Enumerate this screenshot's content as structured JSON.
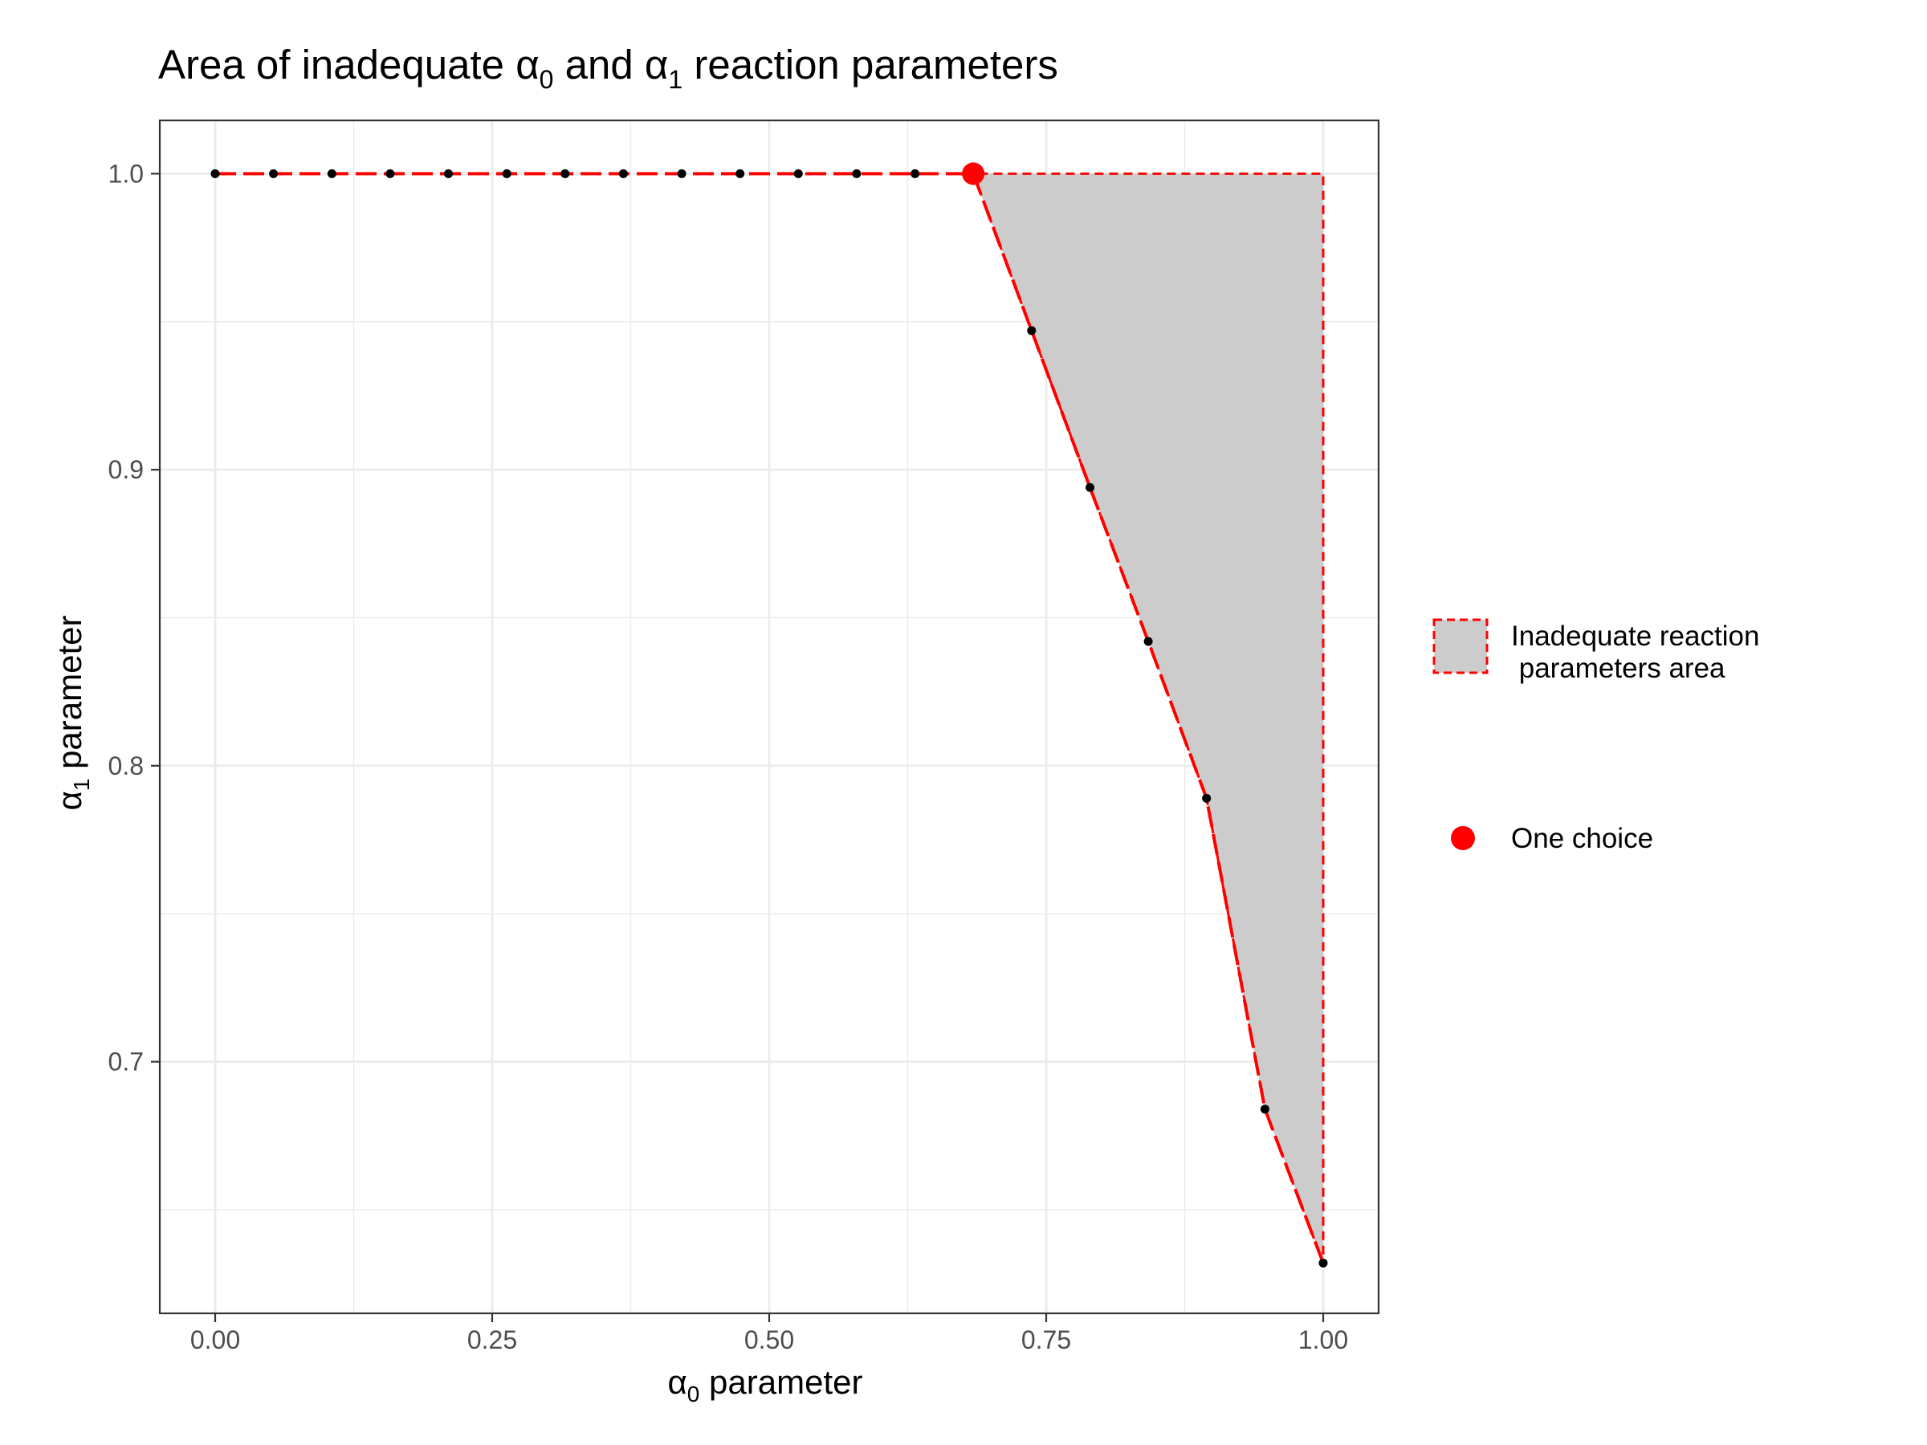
{
  "chart_data": {
    "type": "area",
    "title": {
      "text_before": "Area of inadequate ",
      "symbol_1": "α",
      "subscript_1": "0",
      "text_middle": " and ",
      "symbol_2": "α",
      "subscript_2": "1",
      "text_after": " reaction parameters"
    },
    "xlabel": {
      "symbol": "α",
      "subscript": "0",
      "text": " parameter"
    },
    "ylabel": {
      "symbol": "α",
      "subscript": "1",
      "text": " parameter"
    },
    "xlim": [
      -0.05,
      1.05
    ],
    "ylim": [
      0.615,
      1.018
    ],
    "x_ticks": [
      0.0,
      0.25,
      0.5,
      0.75,
      1.0
    ],
    "x_tick_labels": [
      "0.00",
      "0.25",
      "0.50",
      "0.75",
      "1.00"
    ],
    "y_ticks": [
      0.7,
      0.8,
      0.9,
      1.0
    ],
    "y_tick_labels": [
      "0.7",
      "0.8",
      "0.9",
      "1.0"
    ],
    "grid": true,
    "legend_position": "right",
    "boundary_points": {
      "x": [
        0.0,
        0.0526,
        0.1053,
        0.1579,
        0.2105,
        0.2632,
        0.3158,
        0.3684,
        0.4211,
        0.4737,
        0.5263,
        0.5789,
        0.6316,
        0.6842,
        0.7368,
        0.7895,
        0.8421,
        0.8947,
        0.9474,
        1.0
      ],
      "y": [
        1.0,
        1.0,
        1.0,
        1.0,
        1.0,
        1.0,
        1.0,
        1.0,
        1.0,
        1.0,
        1.0,
        1.0,
        1.0,
        1.0,
        0.947,
        0.894,
        0.842,
        0.789,
        0.684,
        0.632
      ]
    },
    "region": {
      "name": "Inadequate reaction\n parameters area",
      "vertices": [
        [
          0.6842,
          1.0
        ],
        [
          0.7368,
          0.947
        ],
        [
          0.7895,
          0.894
        ],
        [
          0.8421,
          0.842
        ],
        [
          0.8947,
          0.789
        ],
        [
          0.9474,
          0.684
        ],
        [
          1.0,
          0.632
        ],
        [
          1.0,
          1.0
        ]
      ],
      "fill": "#cccccc",
      "border_color": "#ff0000"
    },
    "highlight_point": {
      "name": "One choice",
      "x": 0.6842,
      "y": 1.0,
      "color": "#ff0000"
    },
    "point_color": "#000000",
    "line_color": "#ff0000"
  }
}
